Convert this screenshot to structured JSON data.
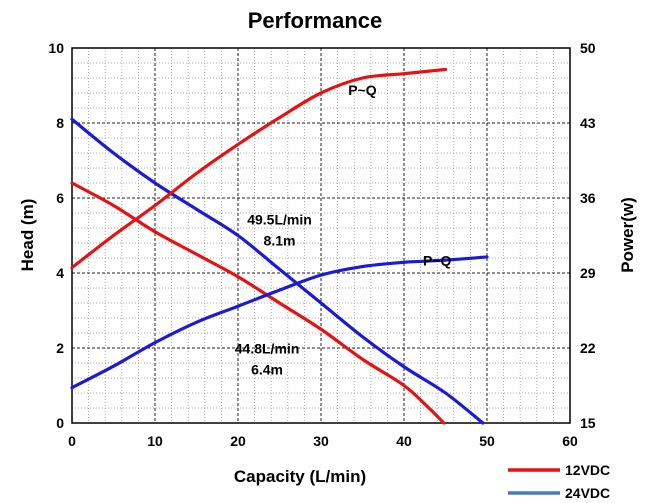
{
  "chart_data": {
    "type": "line",
    "title": "Performance",
    "xlabel": "Capacity (L/min)",
    "ylabel": "Head (m)",
    "y2label": "Power(w)",
    "xlim": [
      0,
      60
    ],
    "ylim": [
      0,
      10
    ],
    "y2lim": [
      15,
      50
    ],
    "x_ticks": [
      "0",
      "10",
      "20",
      "30",
      "40",
      "50",
      "60"
    ],
    "y_ticks": [
      "0",
      "2",
      "4",
      "6",
      "8",
      "10"
    ],
    "y2_ticks": [
      "15",
      "22",
      "29",
      "36",
      "43",
      "50"
    ],
    "grid": true,
    "legend_position": "bottom-right",
    "colors": {
      "12VDC": "#e81010",
      "24VDC": "#1a1ad8",
      "legend_24VDC": "#4a78c0"
    },
    "series": [
      {
        "name": "12VDC",
        "kind": "head",
        "axis": "left",
        "x": [
          0,
          5,
          10,
          15,
          20,
          25,
          30,
          35,
          40,
          43,
          44.8
        ],
        "y": [
          6.4,
          5.8,
          5.1,
          4.5,
          3.9,
          3.2,
          2.5,
          1.7,
          1.0,
          0.4,
          0
        ]
      },
      {
        "name": "24VDC",
        "kind": "head",
        "axis": "left",
        "x": [
          0,
          5,
          10,
          15,
          20,
          25,
          30,
          35,
          40,
          45,
          49.5
        ],
        "y": [
          8.1,
          7.2,
          6.4,
          5.7,
          5.0,
          4.1,
          3.2,
          2.3,
          1.5,
          0.8,
          0
        ]
      },
      {
        "name": "12VDC",
        "kind": "power",
        "axis": "right",
        "x": [
          0,
          5,
          10,
          15,
          20,
          25,
          30,
          35,
          40,
          45
        ],
        "y": [
          29.5,
          32.5,
          35.3,
          38.3,
          41,
          43.5,
          45.8,
          47.2,
          47.6,
          48
        ]
      },
      {
        "name": "24VDC",
        "kind": "power",
        "axis": "right",
        "x": [
          0,
          5,
          10,
          15,
          20,
          25,
          30,
          35,
          40,
          45,
          50
        ],
        "y": [
          18.3,
          20.3,
          22.5,
          24.4,
          25.9,
          27.4,
          28.8,
          29.6,
          30,
          30.2,
          30.5
        ]
      }
    ],
    "annotations": [
      {
        "lines": [
          "49.5L/min",
          "8.1m"
        ],
        "x": 25,
        "y": 5.3
      },
      {
        "lines": [
          "44.8L/min",
          "6.4m"
        ],
        "x": 23.5,
        "y": 1.85
      },
      {
        "text": "P~Q",
        "x": 35,
        "y": 8.75
      },
      {
        "text": "P~Q",
        "x": 44,
        "y": 4.2
      }
    ],
    "legend": [
      {
        "label": "12VDC",
        "color": "#e81010"
      },
      {
        "label": "24VDC",
        "color": "#4a78c0"
      }
    ]
  }
}
